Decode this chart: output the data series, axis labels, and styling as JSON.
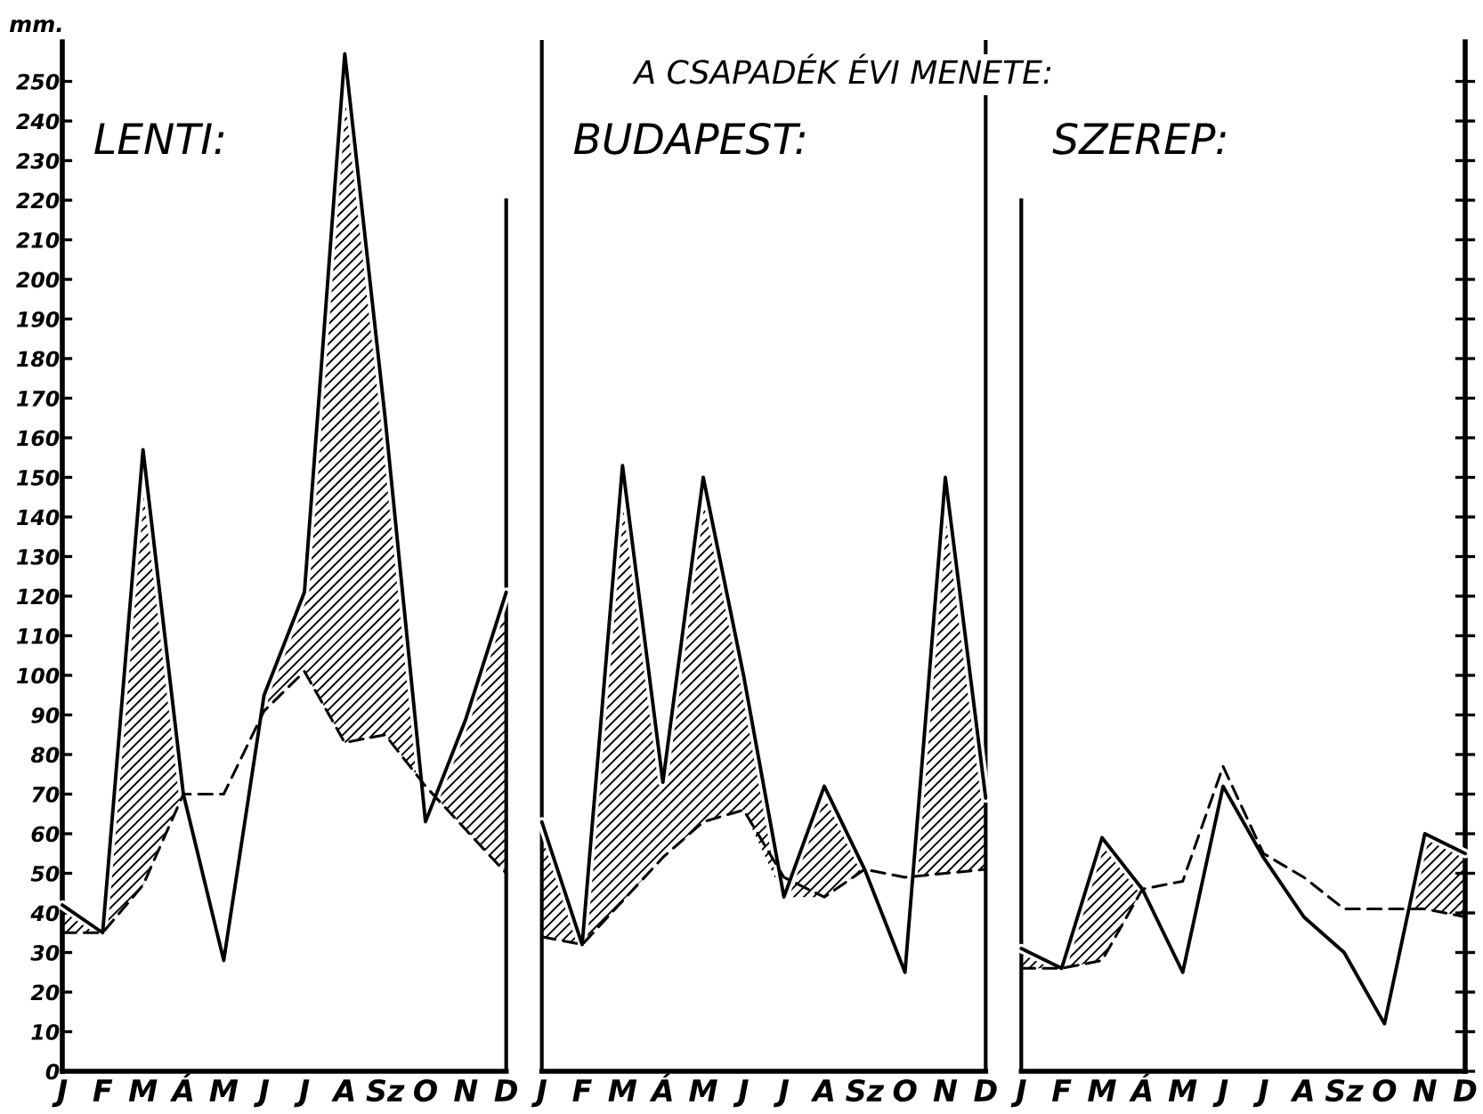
{
  "chart_data": [
    {
      "type": "line",
      "subtitle": "LENTI:",
      "ylabel": "mm.",
      "categories": [
        "J",
        "F",
        "M",
        "Á",
        "M",
        "J",
        "J",
        "A",
        "Sz",
        "O",
        "N",
        "D"
      ],
      "series": [
        {
          "color": "#000000",
          "line_style": "solid",
          "values": [
            42,
            35,
            157,
            70,
            28,
            95,
            121,
            257,
            165,
            63,
            89,
            121
          ],
          "lower": [
            35,
            35,
            47,
            70,
            null,
            91,
            101,
            83,
            85,
            null,
            61,
            50
          ],
          "upper": [
            42,
            35,
            157,
            70,
            null,
            95,
            121,
            257,
            165,
            null,
            89,
            121
          ]
        },
        {
          "color": "#000000",
          "line_style": "dashed",
          "values": [
            35,
            35,
            47,
            70,
            70,
            91,
            101,
            83,
            85,
            72,
            61,
            50
          ]
        }
      ],
      "ylim": [
        0,
        260
      ],
      "yticks": [
        0,
        10,
        20,
        30,
        40,
        50,
        60,
        70,
        80,
        90,
        100,
        110,
        120,
        130,
        140,
        150,
        160,
        170,
        180,
        190,
        200,
        210,
        220,
        230,
        240,
        250
      ]
    },
    {
      "type": "line",
      "title": "A CSAPADÉK ÉVI MENETE:",
      "subtitle": "BUDAPEST:",
      "categories": [
        "J",
        "F",
        "M",
        "Á",
        "M",
        "J",
        "J",
        "A",
        "Sz",
        "O",
        "N",
        "D"
      ],
      "series": [
        {
          "color": "#000000",
          "line_style": "solid",
          "values": [
            63,
            32,
            153,
            73,
            150,
            100,
            44,
            72,
            51,
            25,
            150,
            69
          ],
          "lower": [
            34,
            32,
            43,
            54,
            63,
            66,
            44,
            44,
            51,
            null,
            50,
            51
          ],
          "upper": [
            63,
            32,
            153,
            73,
            150,
            100,
            44,
            72,
            51,
            null,
            150,
            69
          ]
        },
        {
          "color": "#000000",
          "line_style": "dashed",
          "values": [
            34,
            32,
            43,
            54,
            63,
            66,
            49,
            44,
            51,
            49,
            50,
            51
          ]
        }
      ],
      "ylim": [
        0,
        260
      ],
      "tick_labels": "x"
    },
    {
      "type": "line",
      "subtitle": "SZEREP:",
      "categories": [
        "J",
        "F",
        "M",
        "Á",
        "M",
        "J",
        "J",
        "A",
        "Sz",
        "O",
        "N",
        "D"
      ],
      "series": [
        {
          "color": "#000000",
          "line_style": "solid",
          "values": [
            31,
            26,
            59,
            46,
            25,
            72,
            54,
            39,
            30,
            12,
            60,
            55
          ],
          "lower": [
            26,
            26,
            28,
            46,
            null,
            null,
            null,
            null,
            null,
            null,
            41,
            39
          ],
          "upper": [
            31,
            26,
            59,
            46,
            null,
            null,
            null,
            null,
            null,
            null,
            60,
            55
          ]
        },
        {
          "color": "#000000",
          "line_style": "dashed",
          "values": [
            26,
            26,
            28,
            46,
            48,
            77,
            55,
            49,
            41,
            41,
            41,
            39
          ]
        }
      ],
      "ylim": [
        0,
        260
      ],
      "yticks": [
        {
          "value": 0,
          "label": null
        },
        {
          "value": 10,
          "label": null
        },
        {
          "value": 20,
          "label": null
        },
        {
          "value": 30,
          "label": null
        },
        {
          "value": 40,
          "label": null
        },
        {
          "value": 50,
          "label": null
        },
        {
          "value": 60,
          "label": null
        },
        {
          "value": 70,
          "label": null
        },
        {
          "value": 80,
          "label": null
        },
        {
          "value": 90,
          "label": null
        },
        {
          "value": 100,
          "label": null
        },
        {
          "value": 110,
          "label": null
        },
        {
          "value": 120,
          "label": null
        },
        {
          "value": 130,
          "label": null
        },
        {
          "value": 140,
          "label": null
        },
        {
          "value": 150,
          "label": null
        },
        {
          "value": 160,
          "label": null
        },
        {
          "value": 170,
          "label": null
        },
        {
          "value": 180,
          "label": null
        },
        {
          "value": 190,
          "label": null
        },
        {
          "value": 200,
          "label": null
        },
        {
          "value": 210,
          "label": null
        },
        {
          "value": 220,
          "label": null
        },
        {
          "value": 230,
          "label": null
        },
        {
          "value": 240,
          "label": null
        },
        {
          "value": 250,
          "label": null
        }
      ],
      "tick_labels": "x"
    }
  ]
}
